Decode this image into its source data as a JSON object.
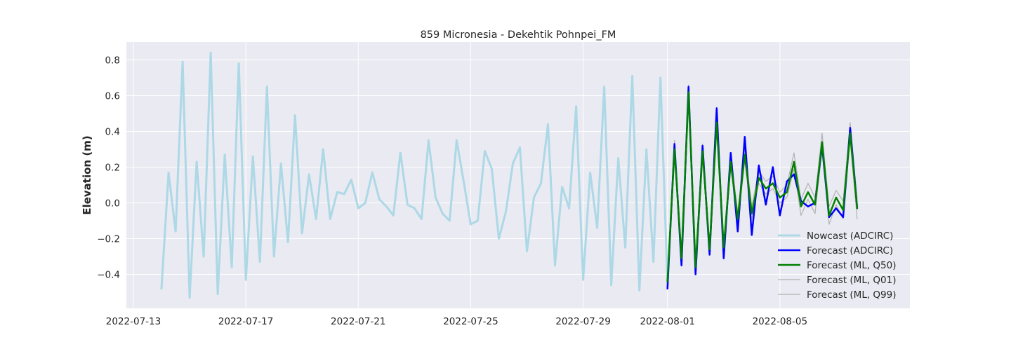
{
  "chart_data": {
    "type": "line",
    "title": "859 Micronesia - Dekehtik Pohnpei_FM",
    "xlabel": "",
    "ylabel": "Elevation (m)",
    "x_axis": "date",
    "x_ticks": [
      "2022-07-13",
      "2022-07-17",
      "2022-07-21",
      "2022-07-25",
      "2022-07-29",
      "2022-08-01",
      "2022-08-05"
    ],
    "y_ticks": [
      -0.4,
      -0.2,
      0.0,
      0.2,
      0.4,
      0.6,
      0.8
    ],
    "y_tick_labels": [
      "−0.4",
      "−0.2",
      "0.0",
      "0.2",
      "0.4",
      "0.6",
      "0.8"
    ],
    "xlim": [
      "2022-07-12 18:00",
      "2022-08-09 15:00"
    ],
    "ylim": [
      -0.59,
      0.9
    ],
    "grid": true,
    "legend_position": "lower right",
    "background_color": "#eaeaf2",
    "series": [
      {
        "name": "Nowcast (ADCIRC)",
        "color": "#add8e6",
        "line_width": 3,
        "x": [
          "2022-07-14 00:00",
          "2022-07-14 06:00",
          "2022-07-14 12:00",
          "2022-07-14 18:00",
          "2022-07-15 00:00",
          "2022-07-15 06:00",
          "2022-07-15 12:00",
          "2022-07-15 18:00",
          "2022-07-16 00:00",
          "2022-07-16 06:00",
          "2022-07-16 12:00",
          "2022-07-16 18:00",
          "2022-07-17 00:00",
          "2022-07-17 06:00",
          "2022-07-17 12:00",
          "2022-07-17 18:00",
          "2022-07-18 00:00",
          "2022-07-18 06:00",
          "2022-07-18 12:00",
          "2022-07-18 18:00",
          "2022-07-19 00:00",
          "2022-07-19 06:00",
          "2022-07-19 12:00",
          "2022-07-19 18:00",
          "2022-07-20 00:00",
          "2022-07-20 06:00",
          "2022-07-20 12:00",
          "2022-07-20 18:00",
          "2022-07-21 00:00",
          "2022-07-21 06:00",
          "2022-07-21 12:00",
          "2022-07-21 18:00",
          "2022-07-22 00:00",
          "2022-07-22 06:00",
          "2022-07-22 12:00",
          "2022-07-22 18:00",
          "2022-07-23 00:00",
          "2022-07-23 06:00",
          "2022-07-23 12:00",
          "2022-07-23 18:00",
          "2022-07-24 00:00",
          "2022-07-24 06:00",
          "2022-07-24 12:00",
          "2022-07-24 18:00",
          "2022-07-25 00:00",
          "2022-07-25 06:00",
          "2022-07-25 12:00",
          "2022-07-25 18:00",
          "2022-07-26 00:00",
          "2022-07-26 06:00",
          "2022-07-26 12:00",
          "2022-07-26 18:00",
          "2022-07-27 00:00",
          "2022-07-27 06:00",
          "2022-07-27 12:00",
          "2022-07-27 18:00",
          "2022-07-28 00:00",
          "2022-07-28 06:00",
          "2022-07-28 12:00",
          "2022-07-28 18:00",
          "2022-07-29 00:00",
          "2022-07-29 06:00",
          "2022-07-29 12:00",
          "2022-07-29 18:00",
          "2022-07-30 00:00",
          "2022-07-30 06:00",
          "2022-07-30 12:00",
          "2022-07-30 18:00",
          "2022-07-31 00:00",
          "2022-07-31 06:00",
          "2022-07-31 12:00",
          "2022-07-31 18:00",
          "2022-08-01 00:00"
        ],
        "values": [
          -0.48,
          0.17,
          -0.16,
          0.79,
          -0.53,
          0.23,
          -0.3,
          0.84,
          -0.51,
          0.27,
          -0.36,
          0.78,
          -0.43,
          0.26,
          -0.33,
          0.65,
          -0.3,
          0.22,
          -0.22,
          0.49,
          -0.17,
          0.16,
          -0.09,
          0.3,
          -0.09,
          0.06,
          0.05,
          0.13,
          -0.03,
          0.0,
          0.17,
          0.02,
          -0.02,
          -0.07,
          0.28,
          -0.01,
          -0.03,
          -0.09,
          0.35,
          0.03,
          -0.06,
          -0.1,
          0.35,
          0.12,
          -0.12,
          -0.1,
          0.29,
          0.19,
          -0.2,
          -0.05,
          0.22,
          0.31,
          -0.27,
          0.03,
          0.11,
          0.44,
          -0.35,
          0.09,
          -0.03,
          0.54,
          -0.43,
          0.17,
          -0.14,
          0.65,
          -0.46,
          0.25,
          -0.25,
          0.71,
          -0.49,
          0.3,
          -0.33,
          0.7,
          -0.45
        ]
      },
      {
        "name": "Forecast (ADCIRC)",
        "color": "#0000ff",
        "line_width": 2.5,
        "x": [
          "2022-08-01 00:00",
          "2022-08-01 06:00",
          "2022-08-01 12:00",
          "2022-08-01 18:00",
          "2022-08-02 00:00",
          "2022-08-02 06:00",
          "2022-08-02 12:00",
          "2022-08-02 18:00",
          "2022-08-03 00:00",
          "2022-08-03 06:00",
          "2022-08-03 12:00",
          "2022-08-03 18:00",
          "2022-08-04 00:00",
          "2022-08-04 06:00",
          "2022-08-04 12:00",
          "2022-08-04 18:00",
          "2022-08-05 00:00",
          "2022-08-05 06:00",
          "2022-08-05 12:00",
          "2022-08-05 18:00",
          "2022-08-06 00:00",
          "2022-08-06 06:00",
          "2022-08-06 12:00",
          "2022-08-06 18:00",
          "2022-08-07 00:00",
          "2022-08-07 06:00",
          "2022-08-07 12:00",
          "2022-08-07 18:00"
        ],
        "values": [
          -0.48,
          0.33,
          -0.35,
          0.65,
          -0.4,
          0.32,
          -0.29,
          0.53,
          -0.31,
          0.28,
          -0.16,
          0.37,
          -0.18,
          0.21,
          -0.01,
          0.2,
          -0.07,
          0.12,
          0.16,
          0.01,
          -0.02,
          0.0,
          0.32,
          -0.08,
          -0.03,
          -0.08,
          0.42,
          -0.03
        ]
      },
      {
        "name": "Forecast (ML, Q50)",
        "color": "#008000",
        "line_width": 2.5,
        "x": [
          "2022-08-01 00:00",
          "2022-08-01 06:00",
          "2022-08-01 12:00",
          "2022-08-01 18:00",
          "2022-08-02 00:00",
          "2022-08-02 06:00",
          "2022-08-02 12:00",
          "2022-08-02 18:00",
          "2022-08-03 00:00",
          "2022-08-03 06:00",
          "2022-08-03 12:00",
          "2022-08-03 18:00",
          "2022-08-04 00:00",
          "2022-08-04 06:00",
          "2022-08-04 12:00",
          "2022-08-04 18:00",
          "2022-08-05 00:00",
          "2022-08-05 06:00",
          "2022-08-05 12:00",
          "2022-08-05 18:00",
          "2022-08-06 00:00",
          "2022-08-06 06:00",
          "2022-08-06 12:00",
          "2022-08-06 18:00",
          "2022-08-07 00:00",
          "2022-08-07 06:00",
          "2022-08-07 12:00",
          "2022-08-07 18:00"
        ],
        "values": [
          -0.44,
          0.3,
          -0.31,
          0.62,
          -0.36,
          0.29,
          -0.26,
          0.45,
          -0.25,
          0.23,
          -0.09,
          0.27,
          -0.06,
          0.14,
          0.08,
          0.11,
          0.03,
          0.06,
          0.23,
          -0.02,
          0.06,
          -0.01,
          0.34,
          -0.07,
          0.03,
          -0.04,
          0.39,
          -0.03
        ]
      },
      {
        "name": "Forecast (ML, Q01)",
        "color": "#b2b2b2",
        "line_width": 1.2,
        "x": [
          "2022-08-01 00:00",
          "2022-08-01 06:00",
          "2022-08-01 12:00",
          "2022-08-01 18:00",
          "2022-08-02 00:00",
          "2022-08-02 06:00",
          "2022-08-02 12:00",
          "2022-08-02 18:00",
          "2022-08-03 00:00",
          "2022-08-03 06:00",
          "2022-08-03 12:00",
          "2022-08-03 18:00",
          "2022-08-04 00:00",
          "2022-08-04 06:00",
          "2022-08-04 12:00",
          "2022-08-04 18:00",
          "2022-08-05 00:00",
          "2022-08-05 06:00",
          "2022-08-05 12:00",
          "2022-08-05 18:00",
          "2022-08-06 00:00",
          "2022-08-06 06:00",
          "2022-08-06 12:00",
          "2022-08-06 18:00",
          "2022-08-07 00:00",
          "2022-08-07 06:00",
          "2022-08-07 12:00",
          "2022-08-07 18:00"
        ],
        "values": [
          -0.46,
          0.27,
          -0.33,
          0.59,
          -0.38,
          0.26,
          -0.28,
          0.42,
          -0.27,
          0.2,
          -0.12,
          0.24,
          -0.09,
          0.11,
          0.05,
          0.08,
          0.0,
          0.03,
          0.19,
          -0.07,
          0.02,
          -0.06,
          0.3,
          -0.12,
          -0.01,
          -0.09,
          0.35,
          -0.09
        ]
      },
      {
        "name": "Forecast (ML, Q99)",
        "color": "#b2b2b2",
        "line_width": 1.2,
        "x": [
          "2022-08-01 00:00",
          "2022-08-01 06:00",
          "2022-08-01 12:00",
          "2022-08-01 18:00",
          "2022-08-02 00:00",
          "2022-08-02 06:00",
          "2022-08-02 12:00",
          "2022-08-02 18:00",
          "2022-08-03 00:00",
          "2022-08-03 06:00",
          "2022-08-03 12:00",
          "2022-08-03 18:00",
          "2022-08-04 00:00",
          "2022-08-04 06:00",
          "2022-08-04 12:00",
          "2022-08-04 18:00",
          "2022-08-05 00:00",
          "2022-08-05 06:00",
          "2022-08-05 12:00",
          "2022-08-05 18:00",
          "2022-08-06 00:00",
          "2022-08-06 06:00",
          "2022-08-06 12:00",
          "2022-08-06 18:00",
          "2022-08-07 00:00",
          "2022-08-07 06:00",
          "2022-08-07 12:00",
          "2022-08-07 18:00"
        ],
        "values": [
          -0.42,
          0.35,
          -0.28,
          0.66,
          -0.33,
          0.33,
          -0.23,
          0.49,
          -0.22,
          0.27,
          -0.05,
          0.31,
          -0.02,
          0.18,
          0.12,
          0.15,
          0.06,
          0.1,
          0.28,
          0.02,
          0.11,
          0.03,
          0.39,
          -0.02,
          0.07,
          0.01,
          0.45,
          0.02
        ]
      }
    ]
  }
}
